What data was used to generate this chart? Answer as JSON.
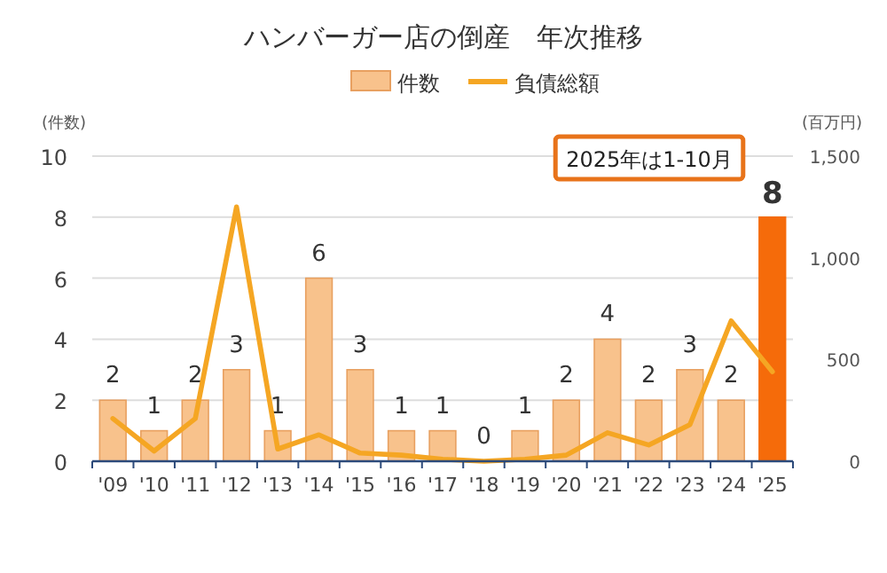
{
  "chart_data": {
    "type": "bar",
    "title": "ハンバーガー店の倒産　年次推移",
    "ylabel": "(件数)",
    "y2label": "(百万円)",
    "categories": [
      "'09",
      "'10",
      "'11",
      "'12",
      "'13",
      "'14",
      "'15",
      "'16",
      "'17",
      "'18",
      "'19",
      "'20",
      "'21",
      "'22",
      "'23",
      "'24",
      "'25"
    ],
    "series": [
      {
        "name": "件数",
        "color": "#f8c28c",
        "colors": [
          "#f8c28c",
          "#f8c28c",
          "#f8c28c",
          "#f8c28c",
          "#f8c28c",
          "#f8c28c",
          "#f8c28c",
          "#f8c28c",
          "#f8c28c",
          "#f8c28c",
          "#f8c28c",
          "#f8c28c",
          "#f8c28c",
          "#f8c28c",
          "#f8c28c",
          "#f8c28c",
          "#f56b0a"
        ],
        "values": [
          2,
          1,
          2,
          3,
          1,
          6,
          3,
          1,
          1,
          0,
          1,
          2,
          4,
          2,
          3,
          2,
          8
        ],
        "value_labels": [
          "2",
          "1",
          "2",
          "3",
          "1",
          "6",
          "3",
          "1",
          "1",
          "0",
          "1",
          "2",
          "4",
          "2",
          "3",
          "2",
          "8"
        ]
      },
      {
        "name": "負債総額",
        "type": "line",
        "axis": "y2",
        "color": "#f5a623",
        "values": [
          210,
          50,
          210,
          1250,
          60,
          130,
          40,
          30,
          10,
          0,
          10,
          30,
          140,
          80,
          180,
          690,
          440
        ]
      }
    ],
    "ylim": [
      0,
      10
    ],
    "yticks": [
      0,
      2,
      4,
      6,
      8,
      10
    ],
    "y2lim": [
      0,
      1500
    ],
    "y2ticks": [
      0,
      {
        "value": 500,
        "label": "500"
      },
      {
        "value": 1000,
        "label": "1,000"
      },
      {
        "value": 1500,
        "label": "1,500"
      }
    ],
    "grid": "y",
    "legend": "top",
    "annotations": [
      "2025年は1-10月"
    ]
  }
}
